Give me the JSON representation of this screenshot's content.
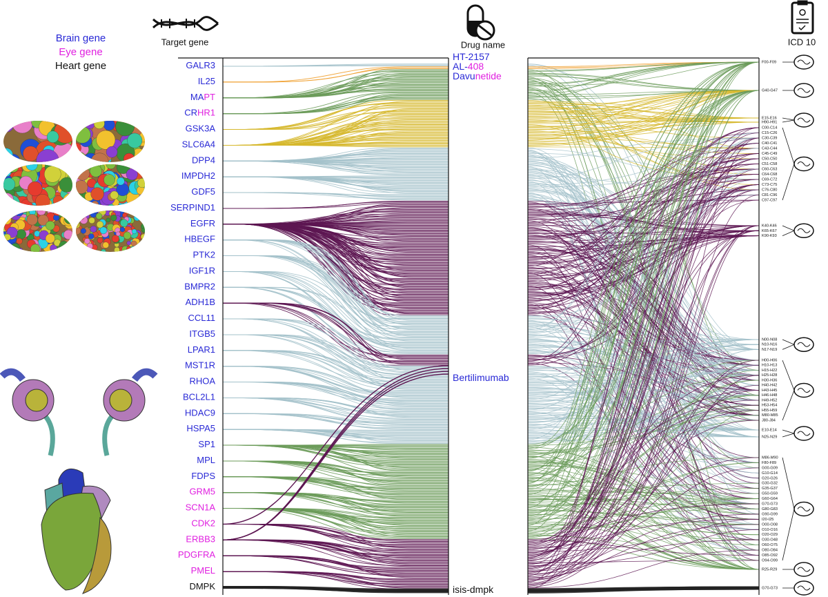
{
  "legend": [
    {
      "t": "Brain gene",
      "c": "b"
    },
    {
      "t": "Eye gene",
      "c": "m"
    },
    {
      "t": "Heart gene",
      "c": "k"
    }
  ],
  "headers": {
    "target": "Target gene",
    "drug": "Drug name",
    "icd": "ICD 10"
  },
  "palette": {
    "b": "#2929d6",
    "m": "#e020e0",
    "k": "#111111"
  },
  "flow_colors": {
    "bg": "#a3c1ca",
    "or": "#f0a030",
    "gr": "#6b9b5a",
    "ye": "#d6b82e",
    "pu": "#5d1652",
    "bk": "#222222"
  },
  "genes": [
    {
      "parts": [
        {
          "t": "GALR3",
          "c": "b"
        }
      ],
      "flow": "bg"
    },
    {
      "parts": [
        {
          "t": "IL25",
          "c": "b"
        }
      ],
      "flow": "or"
    },
    {
      "parts": [
        {
          "t": "MA",
          "c": "b"
        },
        {
          "t": "PT",
          "c": "m"
        }
      ],
      "flow": "gr"
    },
    {
      "parts": [
        {
          "t": "CR",
          "c": "b"
        },
        {
          "t": "HR1",
          "c": "m"
        }
      ],
      "flow": "gr"
    },
    {
      "parts": [
        {
          "t": "GSK3A",
          "c": "b"
        }
      ],
      "flow": "ye"
    },
    {
      "parts": [
        {
          "t": "SLC6A4",
          "c": "b"
        }
      ],
      "flow": "ye"
    },
    {
      "parts": [
        {
          "t": "DPP4",
          "c": "b"
        }
      ],
      "flow": "bg"
    },
    {
      "parts": [
        {
          "t": "IMPDH2",
          "c": "b"
        }
      ],
      "flow": "bg"
    },
    {
      "parts": [
        {
          "t": "GDF5",
          "c": "b"
        }
      ],
      "flow": "bg"
    },
    {
      "parts": [
        {
          "t": "SERPIND1",
          "c": "b"
        }
      ],
      "flow": "pu"
    },
    {
      "parts": [
        {
          "t": "EGFR",
          "c": "b"
        }
      ],
      "flow": "pu"
    },
    {
      "parts": [
        {
          "t": "HBEGF",
          "c": "b"
        }
      ],
      "flow": "bg"
    },
    {
      "parts": [
        {
          "t": "PTK2",
          "c": "b"
        }
      ],
      "flow": "bg"
    },
    {
      "parts": [
        {
          "t": "IGF1R",
          "c": "b"
        }
      ],
      "flow": "bg"
    },
    {
      "parts": [
        {
          "t": "BMPR2",
          "c": "b"
        }
      ],
      "flow": "bg"
    },
    {
      "parts": [
        {
          "t": "ADH1B",
          "c": "b"
        }
      ],
      "flow": "pu"
    },
    {
      "parts": [
        {
          "t": "CCL11",
          "c": "b"
        }
      ],
      "flow": "bg"
    },
    {
      "parts": [
        {
          "t": "ITGB5",
          "c": "b"
        }
      ],
      "flow": "bg"
    },
    {
      "parts": [
        {
          "t": "LPAR1",
          "c": "b"
        }
      ],
      "flow": "bg"
    },
    {
      "parts": [
        {
          "t": "MST1R",
          "c": "b"
        }
      ],
      "flow": "bg"
    },
    {
      "parts": [
        {
          "t": "RHOA",
          "c": "b"
        }
      ],
      "flow": "bg"
    },
    {
      "parts": [
        {
          "t": "BCL2L1",
          "c": "b"
        }
      ],
      "flow": "bg"
    },
    {
      "parts": [
        {
          "t": "HDAC9",
          "c": "b"
        }
      ],
      "flow": "bg"
    },
    {
      "parts": [
        {
          "t": "HSPA5",
          "c": "b"
        }
      ],
      "flow": "bg"
    },
    {
      "parts": [
        {
          "t": "SP1",
          "c": "b"
        }
      ],
      "flow": "gr"
    },
    {
      "parts": [
        {
          "t": "MPL",
          "c": "b"
        }
      ],
      "flow": "gr"
    },
    {
      "parts": [
        {
          "t": "FDPS",
          "c": "b"
        }
      ],
      "flow": "gr"
    },
    {
      "parts": [
        {
          "t": "GRM5",
          "c": "m"
        }
      ],
      "flow": "gr"
    },
    {
      "parts": [
        {
          "t": "SCN1A",
          "c": "m"
        }
      ],
      "flow": "gr"
    },
    {
      "parts": [
        {
          "t": "CDK2",
          "c": "m"
        }
      ],
      "flow": "pu"
    },
    {
      "parts": [
        {
          "t": "ERBB3",
          "c": "m"
        }
      ],
      "flow": "pu"
    },
    {
      "parts": [
        {
          "t": "PDGFRA",
          "c": "m"
        }
      ],
      "flow": "pu"
    },
    {
      "parts": [
        {
          "t": "PMEL",
          "c": "m"
        }
      ],
      "flow": "pu"
    },
    {
      "parts": [
        {
          "t": "DMPK",
          "c": "k"
        }
      ],
      "flow": "bk"
    }
  ],
  "drugs": [
    {
      "parts": [
        {
          "t": "HT-2157",
          "c": "b"
        }
      ]
    },
    {
      "parts": [
        {
          "t": "AL-",
          "c": "b"
        },
        {
          "t": "408",
          "c": "m"
        }
      ]
    },
    {
      "parts": [
        {
          "t": "Davu",
          "c": "b"
        },
        {
          "t": "netide",
          "c": "m"
        }
      ]
    },
    {
      "parts": [
        {
          "t": "Bertilimumab",
          "c": "b"
        }
      ]
    },
    {
      "parts": [
        {
          "t": "isis-dmpk",
          "c": "k"
        }
      ]
    }
  ],
  "icd_groups": [
    {
      "codes": [
        "F00-F09"
      ]
    },
    {
      "codes": [
        "G40-G47"
      ]
    },
    {
      "codes": [
        "E15-E16",
        "H90-H91"
      ]
    },
    {
      "codes": [
        "C00-C14",
        "C15-C26",
        "C30-C39",
        "C40-C41",
        "C43-C44",
        "C45-C49",
        "C50-C50",
        "C51-C58",
        "C60-C63",
        "C64-C68",
        "C69-C72",
        "C73-C75",
        "C76-C80",
        "C81-C96",
        "C97-C97"
      ]
    },
    {
      "codes": [
        "K40-K46",
        "K65-K67",
        "K90-K93"
      ]
    },
    {
      "codes": [
        "N00-N08",
        "N10-N16",
        "N17-N19"
      ]
    },
    {
      "codes": [
        "H00-H06",
        "H10-H13",
        "H15-H22",
        "H25-H28",
        "H30-H36",
        "H40-H42",
        "H43-H45",
        "H46-H48",
        "H49-H52",
        "H53-H54",
        "H55-H59",
        "M80-M85",
        "J80-J84"
      ]
    },
    {
      "codes": [
        "E10-E14",
        "N25-N29"
      ]
    },
    {
      "codes": [
        "M86-M90",
        "F80-F89",
        "G00-G09",
        "G10-G14",
        "G20-G26",
        "G30-G32",
        "G35-G37",
        "G50-G59",
        "G60-G64",
        "G70-G73",
        "G80-G83",
        "G90-G99",
        "I20-I25",
        "O00-O08",
        "O10-O16",
        "O20-O29",
        "O30-O48",
        "O60-O75",
        "O80-O84",
        "O85-O92",
        "O94-O99"
      ]
    },
    {
      "codes": [
        "R25-R29"
      ]
    },
    {
      "codes": [
        "G70-G73"
      ]
    }
  ]
}
